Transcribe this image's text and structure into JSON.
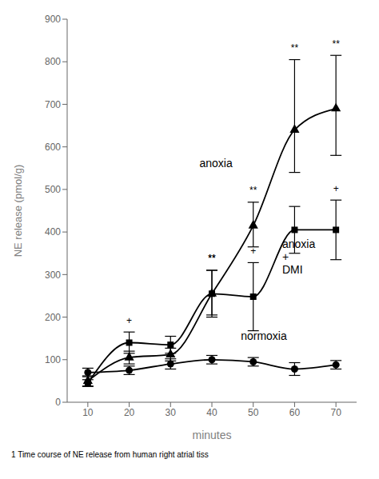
{
  "chart_data": {
    "type": "line",
    "xlabel": "minutes",
    "ylabel": "NE release (pmol/g)",
    "caption": "1  Time course of NE release from human right atrial tiss",
    "x": [
      10,
      20,
      30,
      40,
      50,
      60,
      70
    ],
    "xlim": [
      5,
      75
    ],
    "xticks": [
      10,
      20,
      30,
      40,
      50,
      60,
      70
    ],
    "ylim": [
      0,
      900
    ],
    "yticks": [
      0,
      100,
      200,
      300,
      400,
      500,
      600,
      700,
      800,
      900
    ],
    "color": "#000000",
    "series": [
      {
        "name": "anoxia",
        "marker": "triangle",
        "values": [
          50,
          105,
          112,
          255,
          415,
          640,
          690
        ],
        "error_lo": [
          12,
          15,
          15,
          55,
          50,
          100,
          110
        ],
        "error_hi": [
          12,
          15,
          15,
          55,
          55,
          165,
          125
        ],
        "sig_labels": [
          null,
          null,
          null,
          "**",
          "**",
          "**",
          "**"
        ]
      },
      {
        "name": "anoxia + DMI",
        "marker": "square",
        "values": [
          45,
          140,
          135,
          255,
          248,
          405,
          405
        ],
        "error_lo": [
          8,
          25,
          20,
          50,
          80,
          55,
          70
        ],
        "error_hi": [
          8,
          25,
          20,
          55,
          80,
          55,
          70
        ],
        "sig_labels": [
          null,
          "+",
          null,
          "**",
          "+",
          null,
          "+"
        ]
      },
      {
        "name": "normoxia",
        "marker": "circle",
        "values": [
          70,
          75,
          90,
          100,
          95,
          78,
          88
        ],
        "error_lo": [
          10,
          10,
          12,
          10,
          10,
          15,
          10
        ],
        "error_hi": [
          10,
          10,
          12,
          10,
          10,
          15,
          10
        ]
      }
    ],
    "annotations": [
      {
        "text": "anoxia",
        "x": 37,
        "y": 560
      },
      {
        "text": "anoxia\n+\nDMI",
        "x": 57,
        "y": 340
      },
      {
        "text": "normoxia",
        "x": 47,
        "y": 155
      }
    ]
  }
}
